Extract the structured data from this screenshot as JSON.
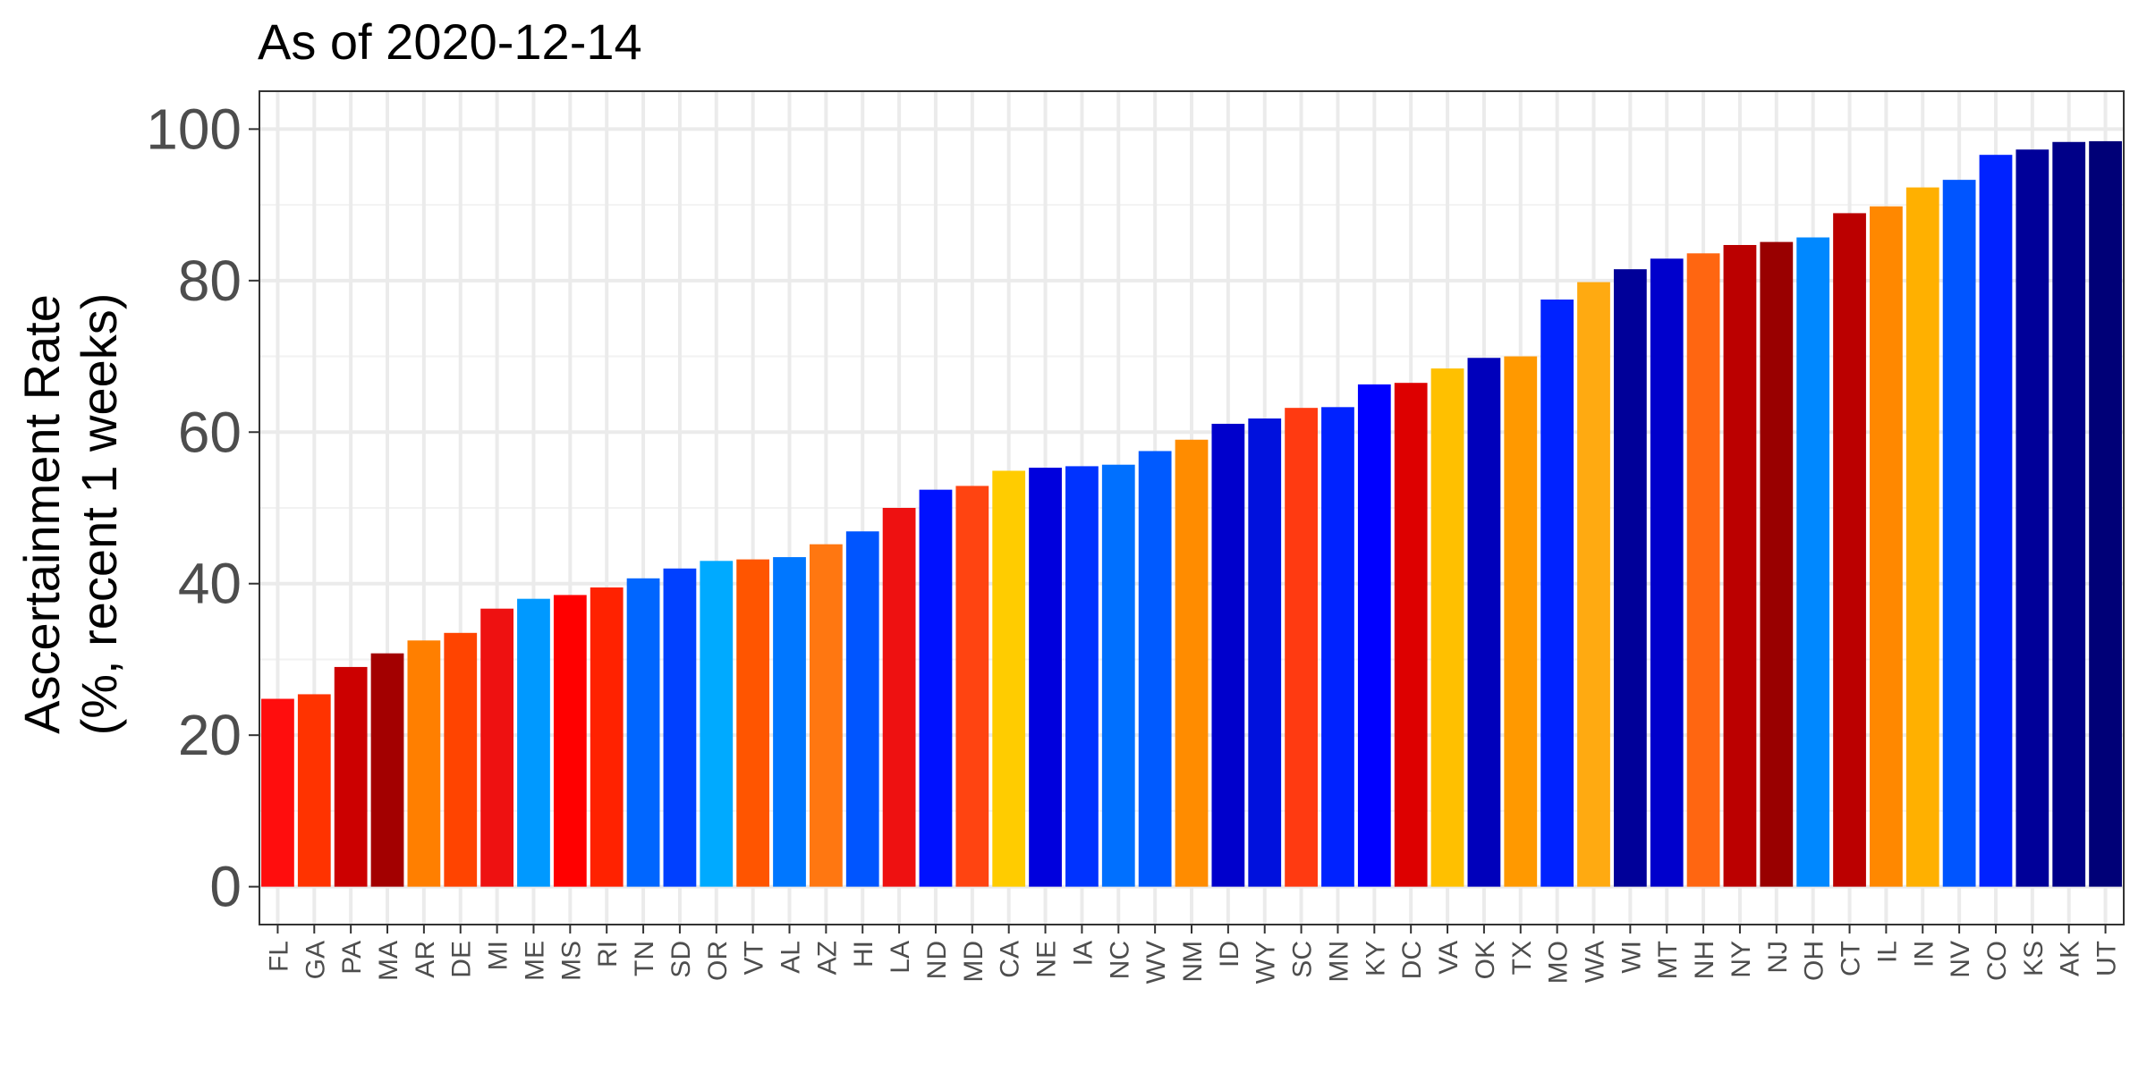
{
  "chart_data": {
    "type": "bar",
    "title": "As of 2020-12-14",
    "ylabel_line1": "Ascertainment Rate",
    "ylabel_line2": "(%, recent 1 weeks)",
    "xlabel": "",
    "ylim": [
      -5,
      105
    ],
    "yticks": [
      0,
      20,
      40,
      60,
      80,
      100
    ],
    "grid": true,
    "legend": "none",
    "categories": [
      "FL",
      "GA",
      "PA",
      "MA",
      "AR",
      "DE",
      "MI",
      "ME",
      "MS",
      "RI",
      "TN",
      "SD",
      "OR",
      "VT",
      "AL",
      "AZ",
      "HI",
      "LA",
      "ND",
      "MD",
      "CA",
      "NE",
      "IA",
      "NC",
      "WV",
      "NM",
      "ID",
      "WY",
      "SC",
      "MN",
      "KY",
      "DC",
      "VA",
      "OK",
      "TX",
      "MO",
      "WA",
      "WI",
      "MT",
      "NH",
      "NY",
      "NJ",
      "OH",
      "CT",
      "IL",
      "IN",
      "NV",
      "CO",
      "KS",
      "AK",
      "UT"
    ],
    "values": [
      24.8,
      25.4,
      29.0,
      30.8,
      32.5,
      33.5,
      36.7,
      38.0,
      38.5,
      39.5,
      40.7,
      42.0,
      43.0,
      43.2,
      43.5,
      45.2,
      46.9,
      50.0,
      52.4,
      52.9,
      54.9,
      55.3,
      55.5,
      55.7,
      57.5,
      59.0,
      61.1,
      61.8,
      63.2,
      63.3,
      66.3,
      66.5,
      68.4,
      69.8,
      70.0,
      77.5,
      79.8,
      81.5,
      82.9,
      83.6,
      84.7,
      85.1,
      85.7,
      88.9,
      89.8,
      92.3,
      93.3,
      96.6,
      97.3,
      98.3,
      98.4
    ],
    "colors": [
      "#ff0d0d",
      "#ff3300",
      "#cc0000",
      "#a30000",
      "#ff7f00",
      "#ff4400",
      "#ee1111",
      "#0099ff",
      "#ff0000",
      "#ff2200",
      "#0066ff",
      "#0040ff",
      "#00aaff",
      "#ff5500",
      "#0077ff",
      "#ff7711",
      "#0055ff",
      "#ee1111",
      "#0011ff",
      "#ff4411",
      "#ffcc00",
      "#0000dd",
      "#0033ff",
      "#0070ff",
      "#005aff",
      "#ff8c00",
      "#0000cc",
      "#0011dd",
      "#ff3a11",
      "#0022ff",
      "#0000ff",
      "#dd0000",
      "#ffc000",
      "#0000bb",
      "#ff9900",
      "#0022ff",
      "#ffaa11",
      "#000099",
      "#0000cc",
      "#ff6611",
      "#bb0000",
      "#990000",
      "#0088ff",
      "#bb0000",
      "#ff8800",
      "#ffb000",
      "#0055ff",
      "#0022ff",
      "#000099",
      "#000088",
      "#000077"
    ]
  }
}
